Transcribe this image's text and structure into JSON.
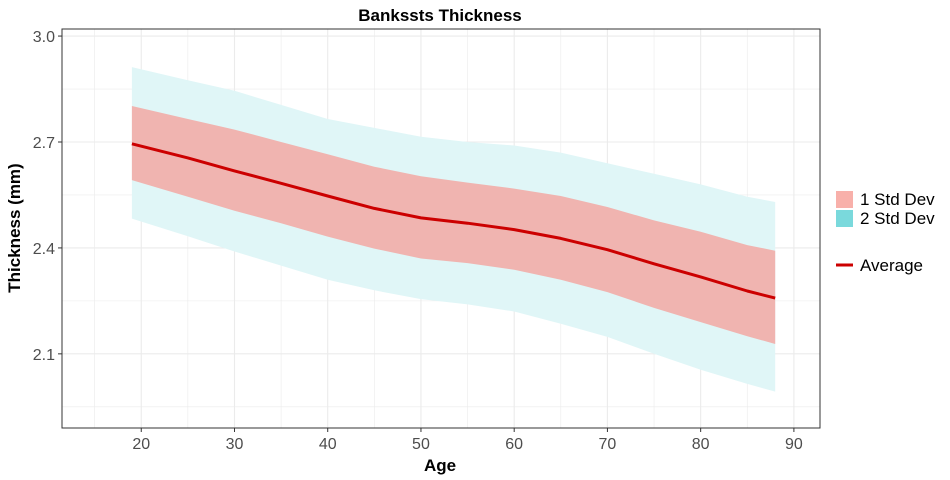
{
  "chart_data": {
    "type": "area",
    "title": "Bankssts Thickness",
    "xlabel": "Age",
    "ylabel": "Thickness (mm)",
    "xlim": [
      11.5,
      92.8
    ],
    "ylim": [
      1.89,
      3.02
    ],
    "xticks": [
      "20",
      "30",
      "40",
      "50",
      "60",
      "70",
      "80",
      "90"
    ],
    "yticks": [
      "2.1",
      "2.4",
      "2.7",
      "3.0"
    ],
    "grid": true,
    "legend_position": "right",
    "x": [
      19,
      25,
      30,
      35,
      40,
      45,
      50,
      55,
      60,
      65,
      70,
      75,
      80,
      85,
      88
    ],
    "series": [
      {
        "name": "Average",
        "kind": "line",
        "color": "#cc0000",
        "values": [
          2.695,
          2.655,
          2.618,
          2.583,
          2.547,
          2.512,
          2.485,
          2.47,
          2.452,
          2.427,
          2.395,
          2.355,
          2.318,
          2.278,
          2.258
        ]
      },
      {
        "name": "1 Std Dev",
        "kind": "band",
        "color": "#f0b4b0",
        "legend_color": "#f8b0aa",
        "lower": [
          2.592,
          2.545,
          2.505,
          2.47,
          2.432,
          2.398,
          2.37,
          2.357,
          2.338,
          2.31,
          2.275,
          2.23,
          2.19,
          2.15,
          2.128
        ],
        "upper": [
          2.802,
          2.765,
          2.735,
          2.7,
          2.665,
          2.63,
          2.603,
          2.585,
          2.568,
          2.547,
          2.516,
          2.478,
          2.446,
          2.408,
          2.392
        ]
      },
      {
        "name": "2 Std Dev",
        "kind": "band",
        "color": "#e0f6f7",
        "legend_color": "#7ad9dc",
        "lower": [
          2.483,
          2.433,
          2.39,
          2.35,
          2.31,
          2.28,
          2.255,
          2.24,
          2.22,
          2.185,
          2.148,
          2.1,
          2.055,
          2.015,
          1.993
        ],
        "upper": [
          2.912,
          2.875,
          2.845,
          2.805,
          2.765,
          2.74,
          2.715,
          2.7,
          2.69,
          2.67,
          2.64,
          2.61,
          2.58,
          2.545,
          2.53
        ]
      }
    ]
  }
}
